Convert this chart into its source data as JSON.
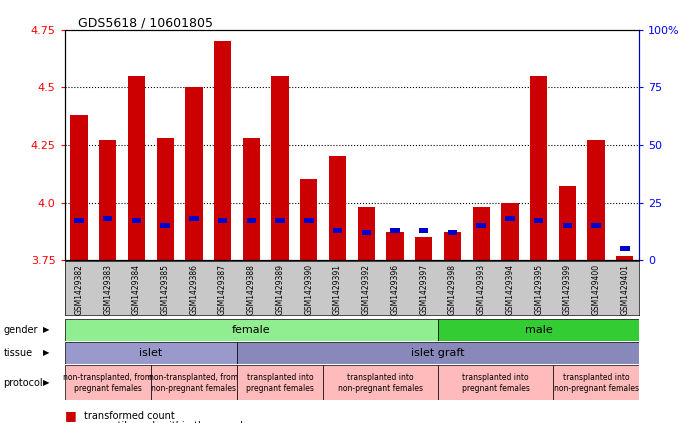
{
  "title": "GDS5618 / 10601805",
  "samples": [
    "GSM1429382",
    "GSM1429383",
    "GSM1429384",
    "GSM1429385",
    "GSM1429386",
    "GSM1429387",
    "GSM1429388",
    "GSM1429389",
    "GSM1429390",
    "GSM1429391",
    "GSM1429392",
    "GSM1429396",
    "GSM1429397",
    "GSM1429398",
    "GSM1429393",
    "GSM1429394",
    "GSM1429395",
    "GSM1429399",
    "GSM1429400",
    "GSM1429401"
  ],
  "red_values": [
    4.38,
    4.27,
    4.55,
    4.28,
    4.5,
    4.7,
    4.28,
    4.55,
    4.1,
    4.2,
    3.98,
    3.87,
    3.85,
    3.87,
    3.98,
    4.0,
    4.55,
    4.07,
    4.27,
    3.77
  ],
  "blue_values": [
    3.92,
    3.93,
    3.92,
    3.9,
    3.93,
    3.92,
    3.92,
    3.92,
    3.92,
    3.88,
    3.87,
    3.88,
    3.88,
    3.87,
    3.9,
    3.93,
    3.92,
    3.9,
    3.9,
    3.8
  ],
  "ymin": 3.75,
  "ymax": 4.75,
  "yticks": [
    3.75,
    4.0,
    4.25,
    4.5,
    4.75
  ],
  "right_yticks": [
    0,
    25,
    50,
    75,
    100
  ],
  "right_yticklabels": [
    "0",
    "25",
    "50",
    "75",
    "100%"
  ],
  "gender_groups": [
    {
      "label": "female",
      "start": 0,
      "end": 13,
      "color": "#90EE90"
    },
    {
      "label": "male",
      "start": 13,
      "end": 20,
      "color": "#33CC33"
    }
  ],
  "tissue_groups": [
    {
      "label": "islet",
      "start": 0,
      "end": 6,
      "color": "#9999CC"
    },
    {
      "label": "islet graft",
      "start": 6,
      "end": 20,
      "color": "#8888BB"
    }
  ],
  "protocol_groups": [
    {
      "label": "non-transplanted, from\npregnant females",
      "start": 0,
      "end": 3,
      "color": "#FFBBBB"
    },
    {
      "label": "non-transplanted, from\nnon-pregnant females",
      "start": 3,
      "end": 6,
      "color": "#FFBBBB"
    },
    {
      "label": "transplanted into\npregnant females",
      "start": 6,
      "end": 9,
      "color": "#FFBBBB"
    },
    {
      "label": "transplanted into\nnon-pregnant females",
      "start": 9,
      "end": 13,
      "color": "#FFBBBB"
    },
    {
      "label": "transplanted into\npregnant females",
      "start": 13,
      "end": 17,
      "color": "#FFBBBB"
    },
    {
      "label": "transplanted into\nnon-pregnant females",
      "start": 17,
      "end": 20,
      "color": "#FFBBBB"
    }
  ],
  "bar_width": 0.6,
  "red_color": "#CC0000",
  "blue_color": "#0000CC",
  "plot_bg_color": "#FFFFFF",
  "label_bg_color": "#C8C8C8",
  "fig_bg_color": "#FFFFFF"
}
